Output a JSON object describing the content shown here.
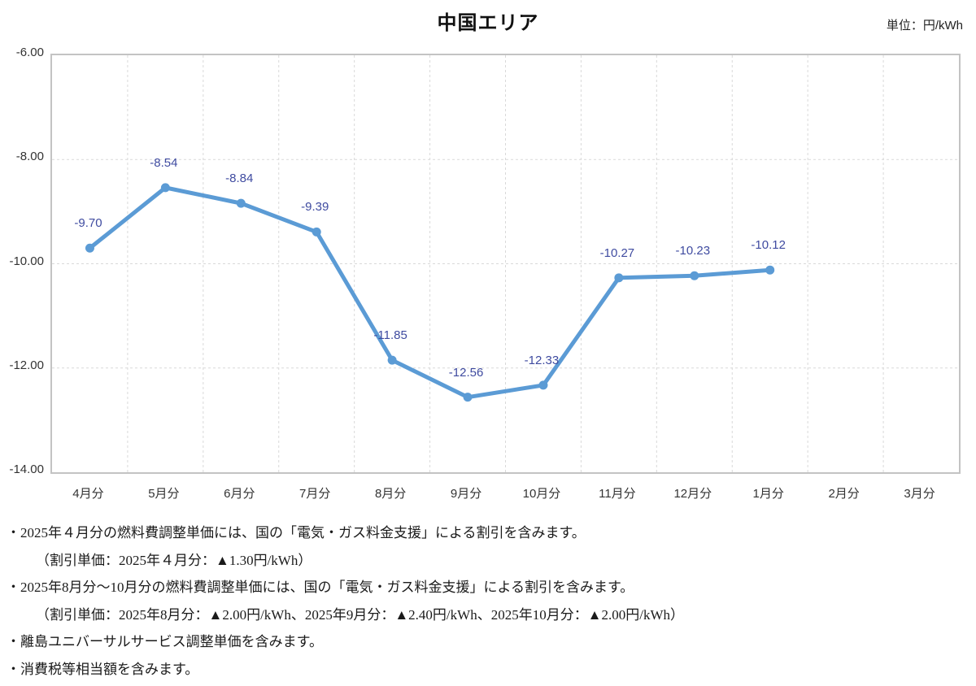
{
  "title": "中国エリア",
  "unit_label": "単位：円/kWh",
  "colors": {
    "series": "#5B9BD5",
    "data_label": "#3F4BA0",
    "gridline": "#D9D9D9",
    "plot_border": "#C3C3C3",
    "axis_text": "#333333"
  },
  "chart_data": {
    "type": "line",
    "title": "中国エリア",
    "unit": "円/kWh",
    "categories": [
      "4月分",
      "5月分",
      "6月分",
      "7月分",
      "8月分",
      "9月分",
      "10月分",
      "11月分",
      "12月分",
      "1月分",
      "2月分",
      "3月分"
    ],
    "series": [
      {
        "name": "燃料費調整単価",
        "values": [
          -9.7,
          -8.54,
          -8.84,
          -9.39,
          -11.85,
          -12.56,
          -12.33,
          -10.27,
          -10.23,
          -10.12,
          null,
          null
        ]
      }
    ],
    "data_labels": [
      "-9.70",
      "-8.54",
      "-8.84",
      "-9.39",
      "-11.85",
      "-12.56",
      "-12.33",
      "-10.27",
      "-10.23",
      "-10.12"
    ],
    "ylim": [
      -14.0,
      -6.0
    ],
    "yticks": [
      "-6.00",
      "-8.00",
      "-10.00",
      "-12.00",
      "-14.00"
    ],
    "grid": true,
    "legend_position": "none",
    "marker": "circle"
  },
  "notes": [
    "・2025年４月分の燃料費調整単価には、国の「電気・ガス料金支援」による割引を含みます。",
    "（割引単価：2025年４月分：▲1.30円/kWh）",
    "・2025年8月分～10月分の燃料費調整単価には、国の「電気・ガス料金支援」による割引を含みます。",
    "（割引単価：2025年8月分：▲2.00円/kWh、2025年9月分：▲2.40円/kWh、2025年10月分：▲2.00円/kWh）",
    "・離島ユニバーサルサービス調整単価を含みます。",
    "・消費税等相当額を含みます。"
  ]
}
